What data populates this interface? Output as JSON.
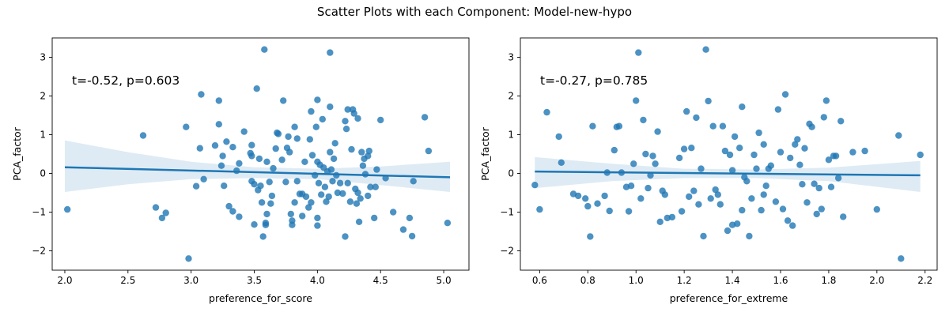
{
  "figure": {
    "title": "Scatter Plots with each Component: Model-new-hypo"
  },
  "colors": {
    "point": "#1f77b4",
    "line": "#1f77b4",
    "band": "#1f77b4"
  },
  "chart_data": [
    {
      "type": "scatter",
      "xlabel": "preference_for_score",
      "ylabel": "PCA_factor",
      "annotation": "t=-0.52, p=0.603",
      "xlim": [
        1.9,
        5.2
      ],
      "ylim": [
        -2.5,
        3.5
      ],
      "xticks": [
        2.0,
        2.5,
        3.0,
        3.5,
        4.0,
        4.5,
        5.0
      ],
      "xtick_labels": [
        "2.0",
        "2.5",
        "3.0",
        "3.5",
        "4.0",
        "4.5",
        "5.0"
      ],
      "yticks": [
        -2,
        -1,
        0,
        1,
        2,
        3
      ],
      "ytick_labels": [
        "−2",
        "−1",
        "0",
        "1",
        "2",
        "3"
      ],
      "regression": {
        "x": [
          2.0,
          5.05
        ],
        "y": [
          0.16,
          -0.1
        ]
      },
      "confidence_band": {
        "x": [
          2.0,
          2.5,
          3.0,
          3.5,
          4.0,
          4.5,
          5.05
        ],
        "upper": [
          0.85,
          0.55,
          0.3,
          0.16,
          0.12,
          0.18,
          0.3
        ],
        "lower": [
          -0.48,
          -0.28,
          -0.15,
          -0.12,
          -0.15,
          -0.3,
          -0.48
        ]
      },
      "points": [
        [
          2.02,
          -0.93
        ],
        [
          2.62,
          0.98
        ],
        [
          2.72,
          -0.88
        ],
        [
          2.77,
          -1.15
        ],
        [
          2.8,
          -1.02
        ],
        [
          2.96,
          1.2
        ],
        [
          2.98,
          -2.2
        ],
        [
          3.04,
          -0.33
        ],
        [
          3.07,
          0.65
        ],
        [
          3.08,
          2.04
        ],
        [
          3.1,
          -0.15
        ],
        [
          3.19,
          0.72
        ],
        [
          3.22,
          1.88
        ],
        [
          3.22,
          1.27
        ],
        [
          3.24,
          0.2
        ],
        [
          3.25,
          0.45
        ],
        [
          3.26,
          -0.32
        ],
        [
          3.28,
          0.82
        ],
        [
          3.3,
          -0.85
        ],
        [
          3.33,
          0.68
        ],
        [
          3.33,
          -0.98
        ],
        [
          3.36,
          0.07
        ],
        [
          3.38,
          -1.12
        ],
        [
          3.38,
          0.26
        ],
        [
          3.42,
          1.08
        ],
        [
          3.47,
          0.52
        ],
        [
          3.48,
          0.45
        ],
        [
          3.48,
          0.73
        ],
        [
          3.48,
          -0.2
        ],
        [
          3.5,
          -1.32
        ],
        [
          3.5,
          -0.28
        ],
        [
          3.52,
          2.19
        ],
        [
          3.53,
          -0.43
        ],
        [
          3.54,
          0.38
        ],
        [
          3.55,
          -0.32
        ],
        [
          3.56,
          -0.75
        ],
        [
          3.57,
          -1.63
        ],
        [
          3.58,
          3.2
        ],
        [
          3.59,
          -1.28
        ],
        [
          3.59,
          -1.33
        ],
        [
          3.6,
          -1.05
        ],
        [
          3.6,
          0.3
        ],
        [
          3.62,
          -0.22
        ],
        [
          3.63,
          -0.78
        ],
        [
          3.64,
          -0.58
        ],
        [
          3.65,
          0.13
        ],
        [
          3.67,
          0.64
        ],
        [
          3.68,
          1.05
        ],
        [
          3.69,
          1.02
        ],
        [
          3.72,
          0.35
        ],
        [
          3.73,
          1.88
        ],
        [
          3.75,
          -0.22
        ],
        [
          3.76,
          0.66
        ],
        [
          3.77,
          0.95
        ],
        [
          3.78,
          0.55
        ],
        [
          3.79,
          -1.05
        ],
        [
          3.8,
          -1.22
        ],
        [
          3.8,
          -1.33
        ],
        [
          3.82,
          -0.75
        ],
        [
          3.82,
          1.2
        ],
        [
          3.84,
          -0.2
        ],
        [
          3.84,
          0.9
        ],
        [
          3.86,
          -0.53
        ],
        [
          3.88,
          -1.1
        ],
        [
          3.88,
          -0.53
        ],
        [
          3.9,
          0.3
        ],
        [
          3.91,
          -0.6
        ],
        [
          3.93,
          -0.88
        ],
        [
          3.94,
          0.88
        ],
        [
          3.95,
          1.6
        ],
        [
          3.95,
          -0.75
        ],
        [
          3.96,
          0.47
        ],
        [
          3.98,
          -0.05
        ],
        [
          3.99,
          1.2
        ],
        [
          4.0,
          -1.35
        ],
        [
          4.0,
          -1.15
        ],
        [
          4.0,
          0.3
        ],
        [
          4.0,
          1.9
        ],
        [
          4.01,
          -0.25
        ],
        [
          4.02,
          0.22
        ],
        [
          4.03,
          -0.55
        ],
        [
          4.04,
          1.4
        ],
        [
          4.05,
          0.15
        ],
        [
          4.06,
          -0.35
        ],
        [
          4.07,
          -0.73
        ],
        [
          4.08,
          0.05
        ],
        [
          4.09,
          -0.6
        ],
        [
          4.1,
          3.12
        ],
        [
          4.1,
          1.72
        ],
        [
          4.1,
          0.55
        ],
        [
          4.11,
          0.1
        ],
        [
          4.12,
          -0.2
        ],
        [
          4.13,
          0.38
        ],
        [
          4.14,
          0.78
        ],
        [
          4.15,
          -0.05
        ],
        [
          4.16,
          -0.5
        ],
        [
          4.18,
          -0.25
        ],
        [
          4.2,
          -0.52
        ],
        [
          4.22,
          -1.63
        ],
        [
          4.22,
          1.35
        ],
        [
          4.23,
          1.15
        ],
        [
          4.24,
          -0.25
        ],
        [
          4.24,
          1.65
        ],
        [
          4.26,
          -0.73
        ],
        [
          4.27,
          0.62
        ],
        [
          4.28,
          1.65
        ],
        [
          4.29,
          1.55
        ],
        [
          4.3,
          -0.4
        ],
        [
          4.31,
          -0.78
        ],
        [
          4.32,
          1.42
        ],
        [
          4.32,
          -0.5
        ],
        [
          4.33,
          -1.25
        ],
        [
          4.34,
          -0.65
        ],
        [
          4.35,
          0.55
        ],
        [
          4.36,
          0.2
        ],
        [
          4.37,
          0.38
        ],
        [
          4.38,
          -0.02
        ],
        [
          4.4,
          0.45
        ],
        [
          4.4,
          -0.58
        ],
        [
          4.41,
          0.58
        ],
        [
          4.42,
          -0.35
        ],
        [
          4.45,
          -1.15
        ],
        [
          4.46,
          -0.35
        ],
        [
          4.47,
          0.1
        ],
        [
          4.5,
          1.38
        ],
        [
          4.54,
          -0.12
        ],
        [
          4.6,
          -1.0
        ],
        [
          4.68,
          -1.45
        ],
        [
          4.73,
          -1.15
        ],
        [
          4.75,
          -1.62
        ],
        [
          4.76,
          -0.2
        ],
        [
          4.85,
          1.45
        ],
        [
          4.88,
          0.58
        ],
        [
          5.03,
          -1.28
        ]
      ]
    },
    {
      "type": "scatter",
      "xlabel": "preference_for_extreme",
      "ylabel": "PCA_factor",
      "annotation": "t=-0.27, p=0.785",
      "xlim": [
        0.52,
        2.25
      ],
      "ylim": [
        -2.5,
        3.5
      ],
      "xticks": [
        0.6,
        0.8,
        1.0,
        1.2,
        1.4,
        1.6,
        1.8,
        2.0,
        2.2
      ],
      "xtick_labels": [
        "0.6",
        "0.8",
        "1.0",
        "1.2",
        "1.4",
        "1.6",
        "1.8",
        "2.0",
        "2.2"
      ],
      "yticks": [
        -2,
        -1,
        0,
        1,
        2,
        3
      ],
      "ytick_labels": [
        "−2",
        "−1",
        "0",
        "1",
        "2",
        "3"
      ],
      "regression": {
        "x": [
          0.58,
          2.18
        ],
        "y": [
          0.05,
          -0.05
        ]
      },
      "confidence_band": {
        "x": [
          0.58,
          0.9,
          1.2,
          1.5,
          1.8,
          2.18
        ],
        "upper": [
          0.42,
          0.25,
          0.12,
          0.1,
          0.15,
          0.32
        ],
        "lower": [
          -0.38,
          -0.2,
          -0.12,
          -0.12,
          -0.2,
          -0.48
        ]
      },
      "points": [
        [
          0.58,
          -0.3
        ],
        [
          0.6,
          -0.93
        ],
        [
          0.63,
          1.58
        ],
        [
          0.68,
          0.95
        ],
        [
          0.69,
          0.28
        ],
        [
          0.74,
          -0.53
        ],
        [
          0.76,
          -0.58
        ],
        [
          0.79,
          -0.65
        ],
        [
          0.8,
          -0.85
        ],
        [
          0.81,
          -1.63
        ],
        [
          0.82,
          1.22
        ],
        [
          0.84,
          -0.78
        ],
        [
          0.87,
          -0.58
        ],
        [
          0.88,
          0.02
        ],
        [
          0.89,
          -0.97
        ],
        [
          0.91,
          0.6
        ],
        [
          0.92,
          1.2
        ],
        [
          0.93,
          1.22
        ],
        [
          0.94,
          0.02
        ],
        [
          0.96,
          -0.35
        ],
        [
          0.97,
          -0.98
        ],
        [
          0.98,
          -0.32
        ],
        [
          0.99,
          0.25
        ],
        [
          1.0,
          1.88
        ],
        [
          1.01,
          3.12
        ],
        [
          1.02,
          -0.65
        ],
        [
          1.03,
          1.38
        ],
        [
          1.04,
          0.5
        ],
        [
          1.05,
          -0.38
        ],
        [
          1.06,
          -0.05
        ],
        [
          1.07,
          0.45
        ],
        [
          1.08,
          0.25
        ],
        [
          1.09,
          1.08
        ],
        [
          1.1,
          -1.25
        ],
        [
          1.11,
          -0.45
        ],
        [
          1.12,
          -0.55
        ],
        [
          1.13,
          -1.15
        ],
        [
          1.15,
          -1.13
        ],
        [
          1.18,
          0.4
        ],
        [
          1.19,
          -0.98
        ],
        [
          1.2,
          0.63
        ],
        [
          1.21,
          1.6
        ],
        [
          1.22,
          -0.6
        ],
        [
          1.23,
          0.66
        ],
        [
          1.24,
          -0.45
        ],
        [
          1.25,
          1.44
        ],
        [
          1.26,
          -0.8
        ],
        [
          1.27,
          0.12
        ],
        [
          1.28,
          -1.62
        ],
        [
          1.29,
          3.2
        ],
        [
          1.3,
          1.87
        ],
        [
          1.31,
          -0.65
        ],
        [
          1.32,
          1.22
        ],
        [
          1.33,
          -0.42
        ],
        [
          1.34,
          -0.55
        ],
        [
          1.35,
          -0.8
        ],
        [
          1.36,
          1.22
        ],
        [
          1.37,
          0.58
        ],
        [
          1.38,
          -1.48
        ],
        [
          1.39,
          0.48
        ],
        [
          1.4,
          -1.33
        ],
        [
          1.4,
          0.08
        ],
        [
          1.41,
          0.95
        ],
        [
          1.42,
          -1.3
        ],
        [
          1.43,
          0.66
        ],
        [
          1.44,
          1.72
        ],
        [
          1.44,
          -0.95
        ],
        [
          1.45,
          -0.1
        ],
        [
          1.46,
          -0.2
        ],
        [
          1.47,
          -1.62
        ],
        [
          1.48,
          -0.65
        ],
        [
          1.49,
          0.48
        ],
        [
          1.5,
          0.12
        ],
        [
          1.51,
          1.05
        ],
        [
          1.52,
          -0.95
        ],
        [
          1.53,
          -0.55
        ],
        [
          1.53,
          0.75
        ],
        [
          1.54,
          -0.32
        ],
        [
          1.55,
          0.12
        ],
        [
          1.56,
          0.2
        ],
        [
          1.58,
          -0.73
        ],
        [
          1.59,
          1.65
        ],
        [
          1.6,
          0.55
        ],
        [
          1.61,
          -0.92
        ],
        [
          1.62,
          2.04
        ],
        [
          1.63,
          -1.22
        ],
        [
          1.64,
          0.4
        ],
        [
          1.65,
          -1.35
        ],
        [
          1.66,
          0.75
        ],
        [
          1.67,
          0.88
        ],
        [
          1.68,
          0.22
        ],
        [
          1.69,
          -0.28
        ],
        [
          1.7,
          0.65
        ],
        [
          1.71,
          -0.75
        ],
        [
          1.72,
          1.28
        ],
        [
          1.73,
          1.2
        ],
        [
          1.74,
          -0.27
        ],
        [
          1.75,
          -1.05
        ],
        [
          1.76,
          -0.38
        ],
        [
          1.77,
          -0.92
        ],
        [
          1.78,
          1.45
        ],
        [
          1.79,
          1.88
        ],
        [
          1.8,
          0.35
        ],
        [
          1.81,
          -0.35
        ],
        [
          1.82,
          0.45
        ],
        [
          1.83,
          0.45
        ],
        [
          1.84,
          -0.12
        ],
        [
          1.85,
          1.35
        ],
        [
          1.86,
          -1.12
        ],
        [
          1.9,
          0.55
        ],
        [
          1.95,
          0.58
        ],
        [
          2.0,
          -0.93
        ],
        [
          2.09,
          0.98
        ],
        [
          2.1,
          -2.2
        ],
        [
          2.18,
          0.48
        ]
      ]
    }
  ]
}
